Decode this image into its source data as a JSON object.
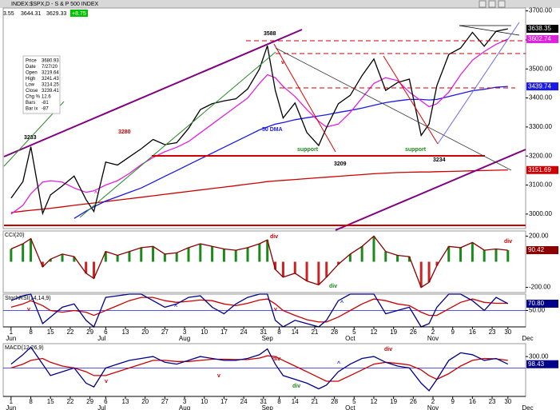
{
  "header": {
    "title": "INDEX:$SPX,D - S & P 500 INDEX",
    "quote": [
      "3.55",
      "3644.31",
      "3629.33",
      "+8.75"
    ]
  },
  "info": [
    [
      "Price",
      "3680.93"
    ],
    [
      "Date",
      "7/27/20"
    ],
    [
      "Open",
      "3219.64"
    ],
    [
      "High",
      "3241.43"
    ],
    [
      "Low",
      "3214.25"
    ],
    [
      "Close",
      "3239.41"
    ],
    [
      "Chg %",
      "12.6"
    ],
    [
      "Bars",
      "-81"
    ],
    [
      "Bar ix",
      "-87"
    ]
  ],
  "x_axis": {
    "xlim": [
      -2,
      130.5
    ],
    "x": [
      0,
      3,
      5,
      8,
      10,
      13,
      16,
      19,
      21,
      24,
      27,
      30,
      33,
      36,
      39,
      42,
      45,
      48,
      51,
      54,
      57,
      60,
      63,
      65,
      67,
      69,
      72,
      75,
      78,
      80,
      83,
      86,
      89,
      92,
      95,
      98,
      101,
      104,
      106,
      108,
      111,
      114,
      117,
      120,
      123,
      126
    ],
    "xticks": [
      {
        "value": 0,
        "label": "1"
      },
      {
        "value": 5,
        "label": "8"
      },
      {
        "value": 10,
        "label": "15"
      },
      {
        "value": 15,
        "label": "22"
      },
      {
        "value": 20,
        "label": "29"
      },
      {
        "value": 24,
        "label": "6"
      },
      {
        "value": 29,
        "label": "13"
      },
      {
        "value": 34,
        "label": "20"
      },
      {
        "value": 39,
        "label": "27"
      },
      {
        "value": 44,
        "label": "3"
      },
      {
        "value": 49,
        "label": "10"
      },
      {
        "value": 54,
        "label": "17"
      },
      {
        "value": 59,
        "label": "24"
      },
      {
        "value": 64,
        "label": "31"
      },
      {
        "value": 68,
        "label": "8"
      },
      {
        "value": 72,
        "label": "14"
      },
      {
        "value": 77,
        "label": "21"
      },
      {
        "value": 82,
        "label": "28"
      },
      {
        "value": 87,
        "label": "5"
      },
      {
        "value": 92,
        "label": "12"
      },
      {
        "value": 97,
        "label": "19"
      },
      {
        "value": 102,
        "label": "26"
      },
      {
        "value": 107,
        "label": "2"
      },
      {
        "value": 112,
        "label": "9"
      },
      {
        "value": 117,
        "label": "16"
      },
      {
        "value": 122,
        "label": "23"
      },
      {
        "value": 126,
        "label": "30"
      }
    ],
    "months": [
      {
        "value": 0,
        "label": "Jun"
      },
      {
        "value": 23,
        "label": "Jul"
      },
      {
        "value": 44,
        "label": "Aug"
      },
      {
        "value": 65,
        "label": "Sep"
      },
      {
        "value": 86,
        "label": "Oct"
      },
      {
        "value": 107,
        "label": "Nov"
      },
      {
        "value": 131,
        "label": "Dec"
      }
    ]
  },
  "chart_data": [
    {
      "type": "line",
      "ylim": [
        2950,
        3710
      ],
      "yticks": [
        {
          "value": 3700,
          "label": "3700.00"
        },
        {
          "value": 3600,
          "label": "3600.00"
        },
        {
          "value": 3500,
          "label": "3500.00"
        },
        {
          "value": 3400,
          "label": "3400.00"
        },
        {
          "value": 3300,
          "label": "3300.00"
        },
        {
          "value": 3200,
          "label": "3200.00"
        },
        {
          "value": 3100,
          "label": "3100.00"
        },
        {
          "value": 3000,
          "label": "3000.00"
        }
      ],
      "series": [
        {
          "color": "#cc0000",
          "last": 3151.69,
          "values": [
            3005,
            3010,
            3013,
            3017,
            3020,
            3025,
            3030,
            3035,
            3038,
            3043,
            3048,
            3053,
            3058,
            3063,
            3068,
            3073,
            3078,
            3083,
            3088,
            3093,
            3098,
            3103,
            3108,
            3112,
            3114,
            3116,
            3119,
            3122,
            3125,
            3127,
            3130,
            3133,
            3136,
            3139,
            3141,
            3143,
            3144,
            3145,
            3145,
            3146,
            3147,
            3148,
            3149,
            3150,
            3151,
            3152
          ]
        },
        {
          "color": "#1a1ae6",
          "last": 3439.74,
          "values": [
            null,
            null,
            null,
            null,
            null,
            null,
            2985,
            3010,
            3025,
            3045,
            3060,
            3075,
            3090,
            3110,
            3130,
            3150,
            3170,
            3190,
            3210,
            3230,
            3250,
            3270,
            3290,
            3300,
            3310,
            3315,
            3325,
            3332,
            3338,
            3342,
            3350,
            3357,
            3365,
            3375,
            3384,
            3390,
            3395,
            3395,
            3393,
            3395,
            3405,
            3415,
            3425,
            3430,
            3437,
            3440
          ]
        },
        {
          "color": "#e020e0",
          "last": 3602.74,
          "values": [
            3000,
            3030,
            3070,
            3110,
            3115,
            3110,
            3090,
            3075,
            3080,
            3100,
            3115,
            3140,
            3170,
            3195,
            3215,
            3230,
            3250,
            3280,
            3310,
            3340,
            3370,
            3400,
            3450,
            3480,
            3470,
            3440,
            3405,
            3360,
            3320,
            3300,
            3310,
            3350,
            3400,
            3450,
            3470,
            3460,
            3420,
            3390,
            3370,
            3380,
            3420,
            3480,
            3530,
            3560,
            3585,
            3603
          ]
        },
        {
          "color": "#000000",
          "last": 3638.35,
          "values": [
            3055,
            3112,
            3232,
            3002,
            3066,
            3097,
            3131,
            3050,
            3009,
            3179,
            3169,
            3197,
            3225,
            3257,
            3239,
            3246,
            3295,
            3360,
            3380,
            3390,
            3397,
            3431,
            3500,
            3580,
            3426,
            3331,
            3383,
            3281,
            3236,
            3298,
            3380,
            3409,
            3477,
            3534,
            3426,
            3453,
            3465,
            3271,
            3310,
            3443,
            3550,
            3572,
            3626,
            3578,
            3630,
            3638
          ]
        }
      ],
      "annotations": [
        {
          "text": "3588"
        },
        {
          "text": "3233"
        },
        {
          "text": "3280"
        },
        {
          "text": "50 DMA"
        },
        {
          "text": "support"
        },
        {
          "text": "3209"
        },
        {
          "text": "support"
        },
        {
          "text": "3234"
        },
        {
          "text": "v"
        },
        {
          "text": "^"
        }
      ]
    },
    {
      "type": "bar",
      "title": "CCI(20)",
      "ylim": [
        -240,
        240
      ],
      "yticks": [
        {
          "value": 200,
          "label": "200.00"
        },
        {
          "value": -200,
          "label": "-200.00"
        }
      ],
      "series": [
        {
          "color": "#1a8a1a",
          "negative_color": "#cc2222",
          "line_color": "#8b0000",
          "last": 90.42,
          "values": [
            100,
            140,
            180,
            -40,
            20,
            60,
            40,
            -90,
            -130,
            80,
            50,
            80,
            110,
            120,
            60,
            70,
            110,
            140,
            120,
            100,
            90,
            110,
            140,
            170,
            -60,
            -120,
            -90,
            -150,
            -180,
            -120,
            -20,
            60,
            120,
            200,
            80,
            50,
            40,
            -200,
            -160,
            -30,
            120,
            110,
            150,
            90,
            100,
            90
          ]
        }
      ],
      "annotations": [
        {
          "text": "div"
        },
        {
          "text": "div"
        },
        {
          "text": "div"
        }
      ]
    },
    {
      "type": "line",
      "title": "StochRSI(14,14,9)",
      "ylim": [
        0,
        100
      ],
      "yticks": [
        {
          "value": 50,
          "label": "50.00"
        }
      ],
      "series": [
        {
          "color": "#cc0000",
          "values": [
            60,
            70,
            80,
            65,
            50,
            45,
            50,
            45,
            35,
            50,
            65,
            80,
            90,
            90,
            80,
            75,
            78,
            82,
            80,
            70,
            65,
            72,
            82,
            85,
            70,
            50,
            35,
            22,
            15,
            15,
            30,
            50,
            70,
            85,
            80,
            70,
            65,
            45,
            35,
            35,
            55,
            75,
            85,
            75,
            72,
            72
          ]
        },
        {
          "color": "#00008b",
          "last": {
            "value": 70.8,
            "label": "70.80"
          },
          "values": [
            80,
            95,
            100,
            10,
            30,
            60,
            70,
            20,
            0,
            90,
            95,
            100,
            100,
            80,
            60,
            70,
            90,
            95,
            60,
            40,
            70,
            90,
            100,
            100,
            20,
            0,
            20,
            10,
            0,
            20,
            80,
            100,
            100,
            100,
            40,
            50,
            60,
            0,
            10,
            60,
            100,
            100,
            80,
            50,
            90,
            71
          ]
        }
      ],
      "annotations": [
        {
          "text": "v"
        },
        {
          "text": "^"
        },
        {
          "text": "v"
        },
        {
          "text": "^"
        }
      ]
    },
    {
      "type": "line",
      "title": "MACD(12,26,9)",
      "ylim": [
        -750,
        640
      ],
      "zero_line": true,
      "yticks": [
        {
          "value": 300,
          "label": "300.00"
        }
      ],
      "series": [
        {
          "color": "#cc0000",
          "values": [
            0,
            100,
            200,
            250,
            150,
            50,
            0,
            -100,
            -200,
            -200,
            -100,
            0,
            100,
            200,
            200,
            170,
            170,
            200,
            230,
            230,
            220,
            220,
            260,
            320,
            300,
            200,
            50,
            -100,
            -250,
            -350,
            -350,
            -200,
            -50,
            100,
            150,
            120,
            80,
            -50,
            -200,
            -300,
            -150,
            50,
            200,
            250,
            240,
            200
          ]
        },
        {
          "color": "#00008b",
          "last": 98.43,
          "values": [
            100,
            350,
            550,
            100,
            -200,
            -100,
            0,
            -400,
            -500,
            0,
            100,
            200,
            250,
            300,
            150,
            100,
            200,
            300,
            250,
            200,
            200,
            250,
            350,
            500,
            100,
            -200,
            -300,
            -400,
            -550,
            -450,
            -100,
            100,
            250,
            300,
            150,
            50,
            0,
            -400,
            -600,
            -300,
            200,
            400,
            350,
            200,
            250,
            100
          ]
        }
      ],
      "annotations": [
        {
          "text": "div"
        },
        {
          "text": "div"
        },
        {
          "text": "v"
        },
        {
          "text": "v"
        },
        {
          "text": "div"
        },
        {
          "text": "^"
        }
      ]
    }
  ]
}
